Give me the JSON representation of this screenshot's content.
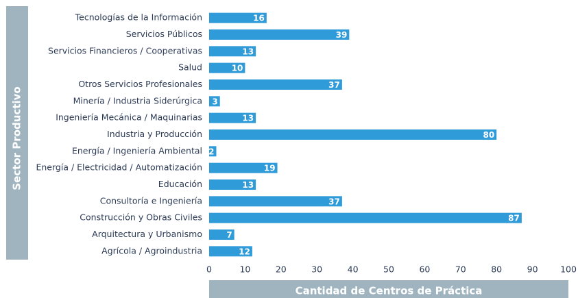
{
  "chart_data": {
    "type": "barh",
    "ylabel": "Sector Productivo",
    "xlabel": "Cantidad de Centros de Práctica",
    "categories": [
      "Tecnologías de la Información",
      "Servicios Públicos",
      "Servicios Financieros / Cooperativas",
      "Salud",
      "Otros Servicios Profesionales",
      "Minería / Industria Siderúrgica",
      "Ingeniería Mecánica / Maquinarias",
      "Industria y Producción",
      "Energía / Ingeniería Ambiental",
      "Energía / Electricidad / Automatización",
      "Educación",
      "Consultoría e Ingeniería",
      "Construcción y Obras Civiles",
      "Arquitectura y Urbanismo",
      "Agrícola / Agroindustria"
    ],
    "values": [
      16,
      39,
      13,
      10,
      37,
      3,
      13,
      80,
      2,
      19,
      13,
      37,
      87,
      7,
      12
    ],
    "color": "#2f9bd8",
    "xlim": [
      0,
      100
    ],
    "xticks": [
      0,
      10,
      20,
      30,
      40,
      50,
      60,
      70,
      80,
      90,
      100
    ],
    "grid": false
  }
}
